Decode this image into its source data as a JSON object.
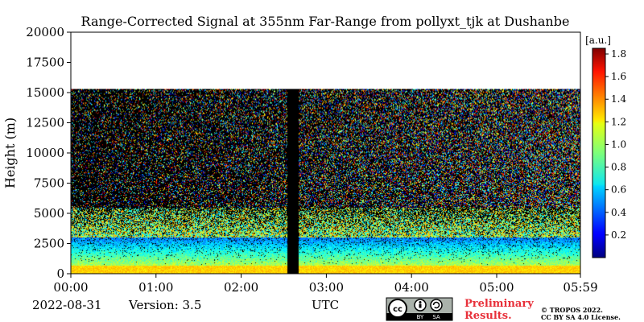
{
  "chart_data": {
    "type": "heatmap",
    "title": "Range-Corrected Signal at 355nm Far-Range from pollyxt_tjk at Dushanbe",
    "xlabel": "UTC",
    "ylabel": "Height (m)",
    "x_ticks": [
      "00:00",
      "01:00",
      "02:00",
      "03:00",
      "04:00",
      "05:00",
      "05:59"
    ],
    "x_range_hours": [
      0,
      5.983
    ],
    "y_ticks": [
      0,
      2500,
      5000,
      7500,
      10000,
      12500,
      15000,
      17500,
      20000
    ],
    "ylim": [
      0,
      20000
    ],
    "data_top_height_m": 15300,
    "gap_utc": [
      "02:32",
      "02:40"
    ],
    "colorbar": {
      "unit": "[a.u.]",
      "ticks": [
        0.2,
        0.4,
        0.6,
        0.8,
        1.0,
        1.2,
        1.4,
        1.6,
        1.8
      ],
      "tick_labels": [
        "0.2",
        "0.4",
        "0.6",
        "0.8",
        "1.0",
        "1.2",
        "1.4",
        "1.6",
        "1.8"
      ],
      "range": [
        0.0,
        1.85
      ],
      "colormap": "jet"
    },
    "profile_description": {
      "surface_layer_top_m": 700,
      "boundary_layer_top_m": 3000,
      "aerosol_signal_top_m": 5500
    }
  },
  "footer": {
    "date": "2022-08-31",
    "version": "Version: 3.5",
    "license_badge": [
      "cc",
      "BY",
      "SA"
    ],
    "preliminary": "Preliminary\nResults.",
    "copyright_line1": "© TROPOS 2022.",
    "copyright_line2": "CC BY SA 4.0 License."
  },
  "colors": {
    "preliminary_text": "#e8303a",
    "gap": "#000000"
  }
}
